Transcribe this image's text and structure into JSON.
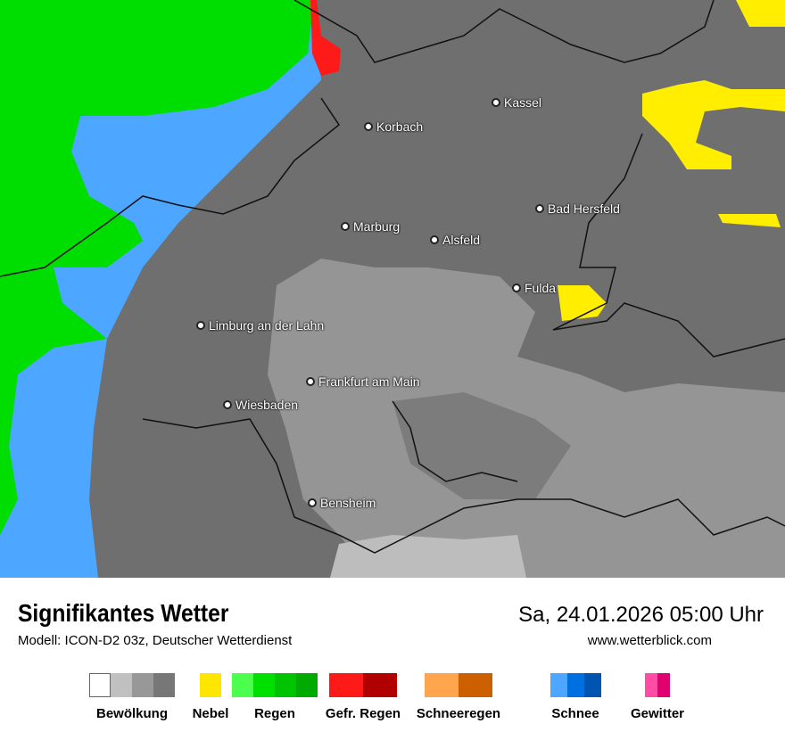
{
  "header": {
    "title": "Signifikantes Wetter",
    "subtitle": "Modell: ICON-D2 03z, Deutscher Wetterdienst",
    "datetime": "Sa, 24.01.2026 05:00 Uhr",
    "website": "www.wetterblick.com"
  },
  "map": {
    "colors": {
      "cloud_dark": "#6f6f6f",
      "cloud_mid": "#959595",
      "cloud_light": "#bdbdbd",
      "rain": "#00dd00",
      "snow": "#4da6ff",
      "freezing_rain": "#ff1a1a",
      "fog": "#ffee00"
    },
    "cities": [
      {
        "name": "Kassel"
      },
      {
        "name": "Korbach"
      },
      {
        "name": "Marburg"
      },
      {
        "name": "Alsfeld"
      },
      {
        "name": "Bad Hersfeld"
      },
      {
        "name": "Fulda"
      },
      {
        "name": "Limburg an der Lahn"
      },
      {
        "name": "Frankfurt am Main"
      },
      {
        "name": "Wiesbaden"
      },
      {
        "name": "Bensheim"
      }
    ]
  },
  "legend": [
    {
      "label": "Bewölkung",
      "colors": [
        "#ffffff",
        "#c0c0c0",
        "#989898",
        "#777777"
      ]
    },
    {
      "label": "Nebel",
      "colors": [
        "#ffe600"
      ]
    },
    {
      "label": "Regen",
      "colors": [
        "#4cff4c",
        "#00e000",
        "#00c400",
        "#00aa00"
      ]
    },
    {
      "label": "Gefr. Regen",
      "colors": [
        "#ff1a1a",
        "#b00000"
      ]
    },
    {
      "label": "Schneeregen",
      "colors": [
        "#ffa54d",
        "#cc5f00"
      ]
    },
    {
      "label": "Schnee",
      "colors": [
        "#4da6ff",
        "#0070e0",
        "#0055b0"
      ]
    },
    {
      "label": "Gewitter",
      "colors": [
        "#ff4da6",
        "#e0006f"
      ]
    }
  ]
}
